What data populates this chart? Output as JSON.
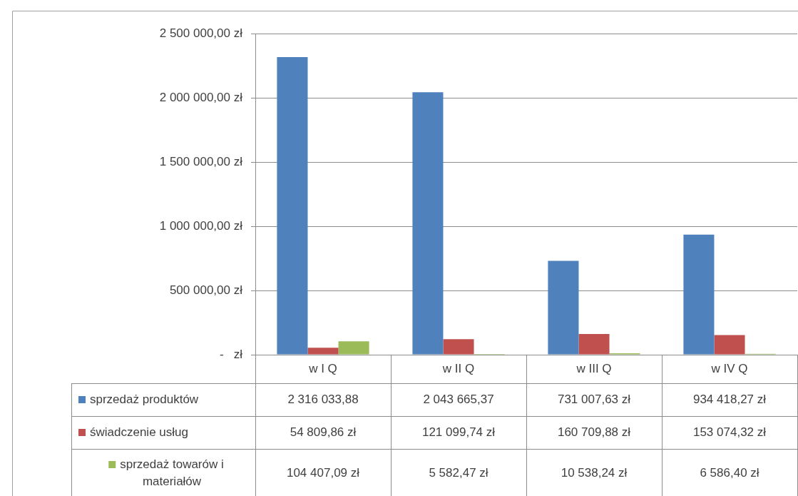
{
  "chart_data": {
    "type": "bar",
    "categories": [
      "w I Q",
      "w II Q",
      "w III Q",
      "w IV Q"
    ],
    "series": [
      {
        "name": "sprzedaż produktów",
        "color": "#4f81bd",
        "values": [
          2316033.88,
          2043665.37,
          731007.63,
          934418.27
        ],
        "value_labels": [
          "2 316 033,88",
          "2 043 665,37",
          "731 007,63 zł",
          "934 418,27 zł"
        ]
      },
      {
        "name": "świadczenie usług",
        "color": "#c0504d",
        "values": [
          54809.86,
          121099.74,
          160709.88,
          153074.32
        ],
        "value_labels": [
          "54 809,86 zł",
          "121 099,74 zł",
          "160 709,88 zł",
          "153 074,32 zł"
        ]
      },
      {
        "name": "sprzedaż towarów i materiałów",
        "color": "#9bbb59",
        "values": [
          104407.09,
          5582.47,
          10538.24,
          6586.4
        ],
        "value_labels": [
          "104 407,09 zł",
          "5 582,47 zł",
          "10 538,24 zł",
          "6 586,40 zł"
        ]
      }
    ],
    "ylim": [
      0,
      2500000
    ],
    "yticks": [
      {
        "value": 0,
        "label": "-   zł"
      },
      {
        "value": 500000,
        "label": "500 000,00 zł"
      },
      {
        "value": 1000000,
        "label": "1 000 000,00 zł"
      },
      {
        "value": 1500000,
        "label": "1 500 000,00 zł"
      },
      {
        "value": 2000000,
        "label": "2 000 000,00 zł"
      },
      {
        "value": 2500000,
        "label": "2 500 000,00 zł"
      }
    ],
    "grid": "y",
    "legend": "bottom"
  }
}
